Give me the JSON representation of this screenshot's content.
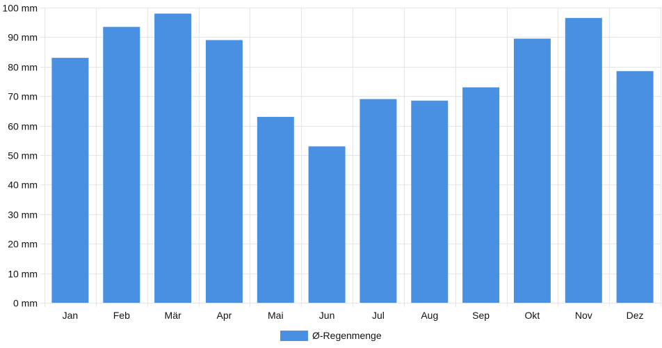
{
  "chart_data": {
    "type": "bar",
    "categories": [
      "Jan",
      "Feb",
      "Mär",
      "Apr",
      "Mai",
      "Jun",
      "Jul",
      "Aug",
      "Sep",
      "Okt",
      "Nov",
      "Dez"
    ],
    "series": [
      {
        "name": "Ø-Regenmenge",
        "color": "#4a90e2",
        "values": [
          83,
          93.5,
          98,
          89,
          63,
          53,
          69,
          68.5,
          73,
          89.5,
          96.5,
          78.5
        ]
      }
    ],
    "ylim": [
      0,
      100
    ],
    "yticks": [
      0,
      10,
      20,
      30,
      40,
      50,
      60,
      70,
      80,
      90,
      100
    ],
    "y_unit": "mm",
    "grid": true,
    "legend_position": "bottom"
  }
}
